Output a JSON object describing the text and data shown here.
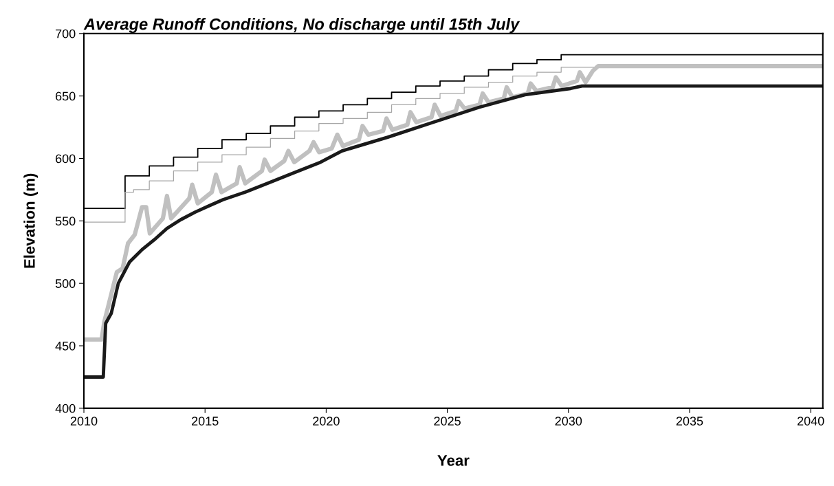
{
  "chart_data": {
    "type": "line",
    "title": "Average Runoff Conditions, No discharge until 15th July",
    "xlabel": "Year",
    "ylabel": "Elevation (m)",
    "xlim": [
      2010,
      2040.5
    ],
    "xticks": [
      2010,
      2015,
      2020,
      2025,
      2030,
      2035,
      2040
    ],
    "ylim": [
      400,
      700
    ],
    "yticks": [
      400,
      450,
      500,
      550,
      600,
      650,
      700
    ],
    "grid": false,
    "marker": "none",
    "line_style": "solid",
    "series": [
      {
        "type": "step",
        "color": "#000000",
        "x": [
          2010,
          2011.7,
          2012.7,
          2013.7,
          2014.7,
          2015.7,
          2016.7,
          2017.7,
          2018.7,
          2019.7,
          2020.7,
          2021.7,
          2022.7,
          2023.7,
          2024.7,
          2025.7,
          2026.7,
          2027.7,
          2028.7,
          2029.7,
          2040.5
        ],
        "values": [
          560,
          586,
          594,
          601,
          608,
          615,
          620,
          626,
          633,
          638,
          643,
          648,
          653,
          658,
          662,
          666,
          671,
          676,
          679,
          683,
          683
        ]
      },
      {
        "type": "step",
        "color": "#a6a6a6",
        "x": [
          2010,
          2011.7,
          2012.05,
          2012.7,
          2013.7,
          2014.7,
          2015.7,
          2016.7,
          2017.7,
          2018.7,
          2019.7,
          2020.7,
          2021.7,
          2022.7,
          2023.7,
          2024.7,
          2025.7,
          2026.7,
          2027.7,
          2028.7,
          2029.7,
          2040.5
        ],
        "values": [
          549,
          573,
          575,
          582,
          590,
          597,
          603,
          609,
          616,
          622,
          628,
          632,
          637,
          643,
          648,
          652,
          657,
          661,
          666,
          669,
          673,
          673
        ]
      },
      {
        "color": "#c0c0c0",
        "x": [
          2010,
          2010.73,
          2010.84,
          2011.36,
          2011.6,
          2011.82,
          2012.1,
          2012.4,
          2012.57,
          2012.72,
          2013.26,
          2013.43,
          2013.6,
          2014.35,
          2014.47,
          2014.7,
          2015.28,
          2015.45,
          2015.68,
          2016.31,
          2016.43,
          2016.66,
          2017.35,
          2017.46,
          2017.7,
          2018.27,
          2018.44,
          2018.68,
          2019.31,
          2019.48,
          2019.71,
          2020.23,
          2020.46,
          2020.69,
          2021.35,
          2021.5,
          2021.74,
          2022.35,
          2022.49,
          2022.73,
          2023.35,
          2023.48,
          2023.72,
          2024.35,
          2024.48,
          2024.72,
          2025.35,
          2025.47,
          2025.71,
          2026.33,
          2026.46,
          2026.7,
          2027.33,
          2027.45,
          2027.69,
          2028.32,
          2028.44,
          2028.68,
          2029.35,
          2029.48,
          2029.72,
          2030.35,
          2030.47,
          2030.71,
          2031.0,
          2031.23,
          2040.5
        ],
        "values": [
          455,
          455,
          469,
          509,
          512,
          532,
          539,
          561,
          561,
          540,
          552,
          570,
          552,
          568,
          579,
          564,
          573,
          587,
          573,
          580,
          593,
          580,
          590,
          599,
          590,
          598,
          606,
          597,
          606,
          613,
          605,
          608,
          619,
          610,
          615,
          626,
          619,
          622,
          632,
          623,
          627,
          637,
          629,
          633,
          643,
          634,
          638,
          646,
          640,
          643,
          652,
          645,
          648,
          657,
          649,
          652,
          660,
          654,
          657,
          665,
          658,
          662,
          669,
          661,
          670,
          674,
          674
        ]
      },
      {
        "color": "#1a1a1a",
        "x": [
          2010,
          2010.8,
          2010.9,
          2011.13,
          2011.42,
          2011.88,
          2012.4,
          2012.97,
          2013.43,
          2014.0,
          2014.59,
          2015.16,
          2015.74,
          2016.66,
          2017.7,
          2018.73,
          2019.77,
          2020.65,
          2022.54,
          2024.43,
          2026.32,
          2028.2,
          2030.09,
          2030.56,
          2040.5
        ],
        "values": [
          425,
          425,
          468,
          476,
          500,
          517,
          527,
          536,
          544,
          551,
          557,
          562,
          567,
          573,
          581,
          589,
          597,
          606,
          617,
          629,
          641,
          651,
          656,
          658,
          658
        ]
      }
    ]
  }
}
